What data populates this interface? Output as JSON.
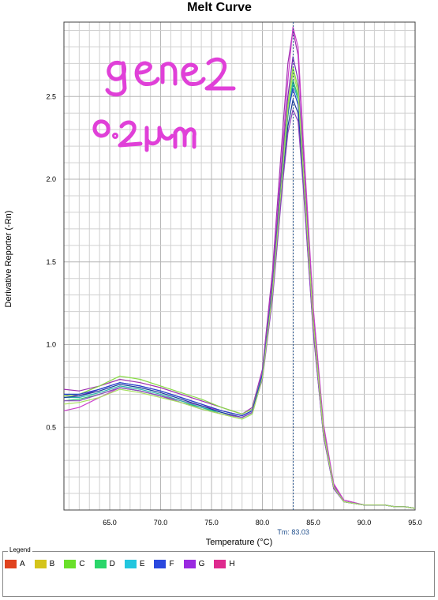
{
  "chart_data": {
    "type": "line",
    "title": "Melt Curve",
    "xlabel": "Temperature (°C)",
    "ylabel": "Derivative Reporter (-Rn)",
    "xlim": [
      60.5,
      95.0
    ],
    "ylim": [
      0.0,
      2.95
    ],
    "grid": true,
    "x_ticks": [
      65.0,
      70.0,
      75.0,
      80.0,
      85.0,
      90.0,
      95.0
    ],
    "x_tick_labels": [
      "65.0",
      "70.0",
      "75.0",
      "80.0",
      "85.0",
      "90.0",
      "95.0"
    ],
    "y_ticks": [
      0.5,
      1.0,
      1.5,
      2.0,
      2.5
    ],
    "y_tick_labels": [
      "0.5",
      "1.0",
      "1.5",
      "2.0",
      "2.5"
    ],
    "tm_marker": {
      "x": 83.03,
      "label": "Tm: 83.03"
    },
    "annotations": [
      {
        "text": "gene2",
        "color": "#e040d8"
      },
      {
        "text": "0.2μM",
        "color": "#e040d8"
      }
    ],
    "legend": {
      "title": "Legend",
      "placement": "bottom",
      "items": [
        {
          "label": "A",
          "color": "#e0421e"
        },
        {
          "label": "B",
          "color": "#d4c41a"
        },
        {
          "label": "C",
          "color": "#6ae02a"
        },
        {
          "label": "D",
          "color": "#2ad66a"
        },
        {
          "label": "E",
          "color": "#22c6de"
        },
        {
          "label": "F",
          "color": "#2a48de"
        },
        {
          "label": "G",
          "color": "#9a2ae0"
        },
        {
          "label": "H",
          "color": "#de2a8e"
        }
      ]
    },
    "series": [
      {
        "color": "#a030b0",
        "x": [
          60.5,
          62,
          64,
          66,
          68,
          70,
          72,
          74,
          76,
          78,
          79,
          80,
          81,
          82,
          82.5,
          83,
          83.5,
          84,
          85,
          86,
          87,
          88,
          90,
          92,
          93,
          94,
          95
        ],
        "y": [
          0.73,
          0.72,
          0.75,
          0.79,
          0.77,
          0.74,
          0.7,
          0.66,
          0.62,
          0.58,
          0.62,
          0.85,
          1.45,
          2.3,
          2.7,
          2.9,
          2.75,
          2.2,
          1.2,
          0.5,
          0.15,
          0.06,
          0.03,
          0.03,
          0.02,
          0.02,
          0.01
        ]
      },
      {
        "color": "#cc40cc",
        "x": [
          60.5,
          62,
          64,
          66,
          68,
          70,
          72,
          74,
          76,
          78,
          79,
          80,
          81,
          82,
          82.5,
          83,
          83.5,
          84,
          85,
          86,
          87,
          88,
          90,
          92,
          93,
          94,
          95
        ],
        "y": [
          0.6,
          0.62,
          0.68,
          0.74,
          0.72,
          0.69,
          0.66,
          0.63,
          0.6,
          0.57,
          0.6,
          0.83,
          1.4,
          2.2,
          2.6,
          2.92,
          2.8,
          2.25,
          1.22,
          0.52,
          0.16,
          0.06,
          0.03,
          0.03,
          0.02,
          0.02,
          0.01
        ]
      },
      {
        "color": "#7a2ab8",
        "x": [
          60.5,
          62,
          64,
          66,
          68,
          70,
          72,
          74,
          76,
          78,
          79,
          80,
          81,
          82,
          82.5,
          83,
          83.5,
          84,
          85,
          86,
          87,
          88,
          90,
          92,
          93,
          94,
          95
        ],
        "y": [
          0.7,
          0.69,
          0.73,
          0.77,
          0.75,
          0.72,
          0.68,
          0.64,
          0.6,
          0.57,
          0.6,
          0.82,
          1.38,
          2.15,
          2.5,
          2.74,
          2.6,
          2.1,
          1.15,
          0.48,
          0.14,
          0.05,
          0.03,
          0.03,
          0.02,
          0.02,
          0.01
        ]
      },
      {
        "color": "#88dd44",
        "x": [
          60.5,
          62,
          64,
          66,
          68,
          70,
          72,
          74,
          76,
          78,
          79,
          80,
          81,
          82,
          82.5,
          83,
          83.5,
          84,
          85,
          86,
          87,
          88,
          90,
          92,
          93,
          94,
          95
        ],
        "y": [
          0.69,
          0.7,
          0.75,
          0.81,
          0.79,
          0.75,
          0.71,
          0.67,
          0.62,
          0.58,
          0.61,
          0.82,
          1.35,
          2.1,
          2.45,
          2.68,
          2.55,
          2.08,
          1.14,
          0.48,
          0.14,
          0.05,
          0.03,
          0.03,
          0.02,
          0.02,
          0.01
        ]
      },
      {
        "color": "#30c070",
        "x": [
          60.5,
          62,
          64,
          66,
          68,
          70,
          72,
          74,
          76,
          78,
          79,
          80,
          81,
          82,
          82.5,
          83,
          83.5,
          84,
          85,
          86,
          87,
          88,
          90,
          92,
          93,
          94,
          95
        ],
        "y": [
          0.66,
          0.67,
          0.7,
          0.74,
          0.72,
          0.69,
          0.65,
          0.62,
          0.58,
          0.55,
          0.58,
          0.8,
          1.32,
          2.05,
          2.38,
          2.6,
          2.5,
          2.05,
          1.12,
          0.47,
          0.14,
          0.05,
          0.03,
          0.03,
          0.02,
          0.02,
          0.01
        ]
      },
      {
        "color": "#28b4a8",
        "x": [
          60.5,
          62,
          64,
          66,
          68,
          70,
          72,
          74,
          76,
          78,
          79,
          80,
          81,
          82,
          82.5,
          83,
          83.5,
          84,
          85,
          86,
          87,
          88,
          90,
          92,
          93,
          94,
          95
        ],
        "y": [
          0.68,
          0.68,
          0.71,
          0.75,
          0.73,
          0.7,
          0.66,
          0.62,
          0.59,
          0.56,
          0.59,
          0.81,
          1.33,
          2.07,
          2.4,
          2.58,
          2.48,
          2.04,
          1.12,
          0.47,
          0.14,
          0.05,
          0.03,
          0.03,
          0.02,
          0.02,
          0.01
        ]
      },
      {
        "color": "#2244cc",
        "x": [
          60.5,
          62,
          64,
          66,
          68,
          70,
          72,
          74,
          76,
          78,
          79,
          80,
          81,
          82,
          82.5,
          83,
          83.5,
          84,
          85,
          86,
          87,
          88,
          90,
          92,
          93,
          94,
          95
        ],
        "y": [
          0.7,
          0.7,
          0.73,
          0.77,
          0.75,
          0.72,
          0.68,
          0.64,
          0.6,
          0.57,
          0.6,
          0.82,
          1.34,
          2.08,
          2.4,
          2.55,
          2.45,
          2.02,
          1.1,
          0.46,
          0.14,
          0.05,
          0.03,
          0.03,
          0.02,
          0.02,
          0.01
        ]
      },
      {
        "color": "#1a3a9a",
        "x": [
          60.5,
          62,
          64,
          66,
          68,
          70,
          72,
          74,
          76,
          78,
          79,
          80,
          81,
          82,
          82.5,
          83,
          83.5,
          84,
          85,
          86,
          87,
          88,
          90,
          92,
          93,
          94,
          95
        ],
        "y": [
          0.68,
          0.69,
          0.72,
          0.76,
          0.74,
          0.71,
          0.67,
          0.63,
          0.59,
          0.56,
          0.59,
          0.8,
          1.3,
          2.0,
          2.32,
          2.48,
          2.4,
          1.98,
          1.08,
          0.45,
          0.13,
          0.05,
          0.03,
          0.03,
          0.02,
          0.02,
          0.01
        ]
      },
      {
        "color": "#9044c0",
        "x": [
          60.5,
          62,
          64,
          66,
          68,
          70,
          72,
          74,
          76,
          78,
          79,
          80,
          81,
          82,
          82.5,
          83,
          83.5,
          84,
          85,
          86,
          87,
          88,
          90,
          92,
          93,
          94,
          95
        ],
        "y": [
          0.66,
          0.66,
          0.7,
          0.74,
          0.72,
          0.69,
          0.65,
          0.61,
          0.58,
          0.56,
          0.59,
          0.79,
          1.28,
          1.98,
          2.28,
          2.42,
          2.35,
          1.96,
          1.07,
          0.45,
          0.13,
          0.05,
          0.03,
          0.03,
          0.02,
          0.02,
          0.01
        ]
      },
      {
        "color": "#a8e060",
        "x": [
          60.5,
          62,
          64,
          66,
          68,
          70,
          72,
          74,
          76,
          78,
          79,
          80,
          81,
          82,
          82.5,
          83,
          83.5,
          84,
          85,
          86,
          87,
          88,
          90,
          92,
          93,
          94,
          95
        ],
        "y": [
          0.64,
          0.65,
          0.68,
          0.73,
          0.71,
          0.68,
          0.65,
          0.61,
          0.58,
          0.55,
          0.58,
          0.8,
          1.32,
          2.06,
          2.42,
          2.65,
          2.52,
          2.06,
          1.13,
          0.47,
          0.14,
          0.05,
          0.03,
          0.03,
          0.02,
          0.02,
          0.01
        ]
      }
    ]
  }
}
